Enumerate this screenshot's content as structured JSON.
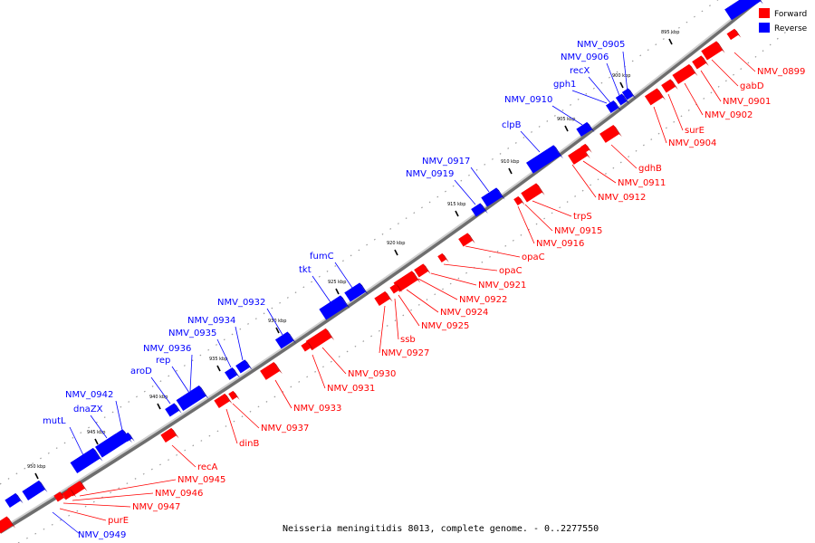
{
  "caption": "Neisseria meningitidis 8013, complete genome. - 0..2277550",
  "legend": {
    "forward": {
      "label": "Forward",
      "color": "#ff0000"
    },
    "reverse": {
      "label": "Reverse",
      "color": "#0000ff"
    }
  },
  "colors": {
    "forward": "#ff0000",
    "forward_dark": "#b30000",
    "reverse": "#0000ff",
    "reverse_dark": "#0000a8",
    "backbone": "#a0a0a0"
  },
  "ticks": [
    "895 kbp",
    "900 kbp",
    "905 kbp",
    "910 kbp",
    "915 kbp",
    "920 kbp",
    "925 kbp",
    "930 kbp",
    "935 kbp",
    "940 kbp",
    "945 kbp",
    "950 kbp"
  ],
  "reverse_genes": [
    "NMV_0905",
    "NMV_0906",
    "recX",
    "gph1",
    "NMV_0910",
    "clpB",
    "NMV_0917",
    "NMV_0919",
    "fumC",
    "tkt",
    "NMV_0932",
    "NMV_0934",
    "NMV_0935",
    "NMV_0936",
    "rep",
    "aroD",
    "NMV_0942",
    "dnaZX",
    "mutL",
    "NMV_0949"
  ],
  "forward_genes": [
    "NMV_0899",
    "gabD",
    "NMV_0901",
    "NMV_0902",
    "surE",
    "NMV_0904",
    "gdhB",
    "NMV_0911",
    "NMV_0912",
    "trpS",
    "NMV_0915",
    "NMV_0916",
    "opaC",
    "opaC",
    "NMV_0921",
    "NMV_0922",
    "NMV_0924",
    "NMV_0925",
    "ssb",
    "NMV_0927",
    "NMV_0930",
    "NMV_0931",
    "NMV_0933",
    "NMV_0937",
    "dinB",
    "recA",
    "NMV_0945",
    "NMV_0946",
    "NMV_0947",
    "purE"
  ]
}
